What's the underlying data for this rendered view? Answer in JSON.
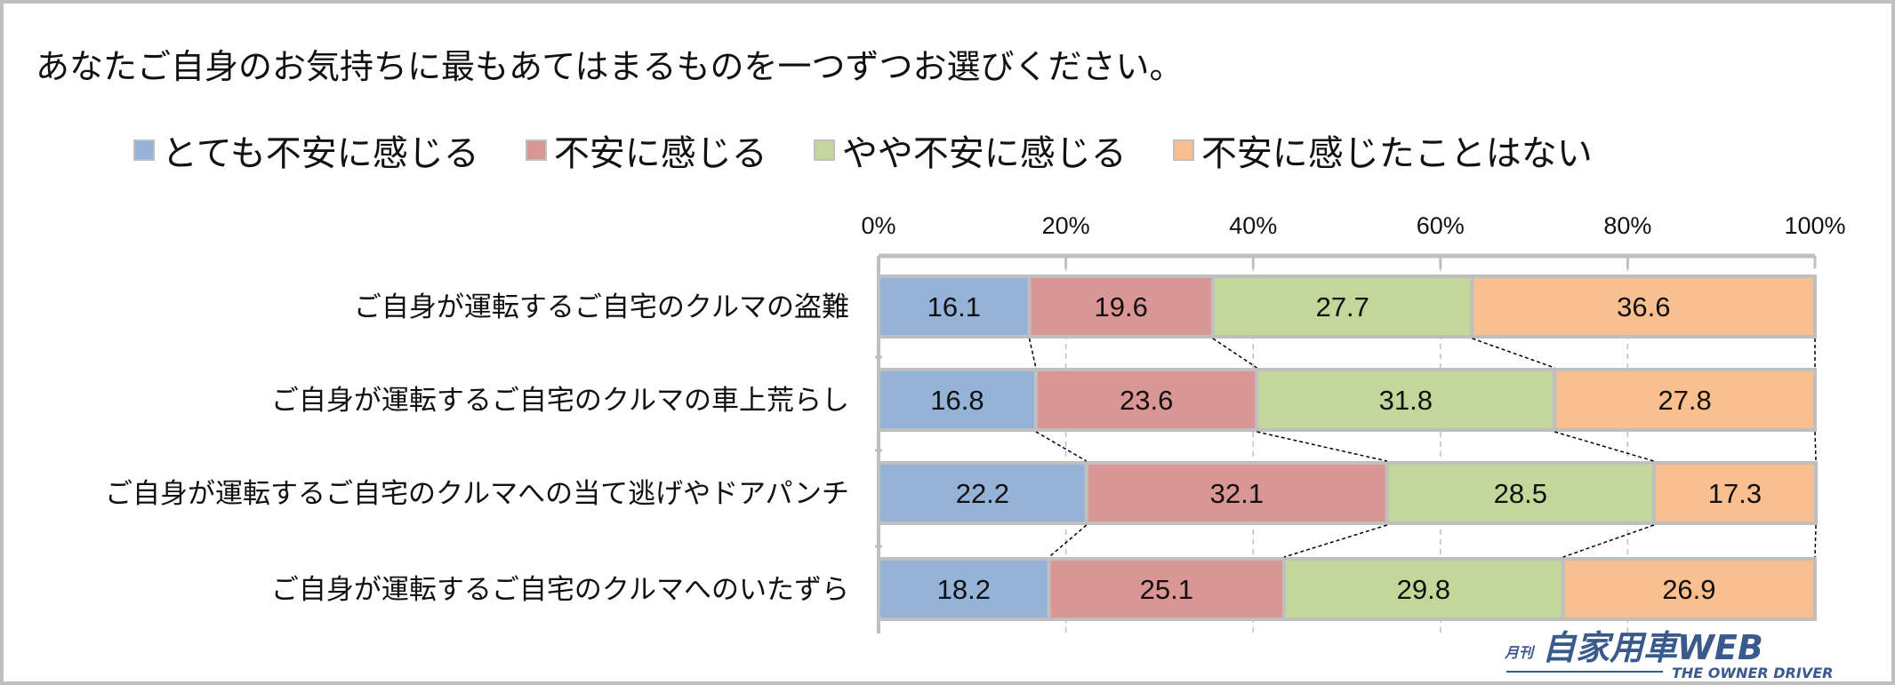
{
  "chart_data": {
    "type": "bar",
    "orientation": "horizontal-stacked-100",
    "title": "あなたご自身のお気持ちに最もあてはまるものを一つずつお選びください。",
    "categories": [
      "ご自身が運転するご自宅のクルマの盗難",
      "ご自身が運転するご自宅のクルマの車上荒らし",
      "ご自身が運転するご自宅のクルマへの当て逃げやドアパンチ",
      "ご自身が運転するご自宅のクルマへのいたずら"
    ],
    "series": [
      {
        "name": "とても不安に感じる",
        "color": "#95b3d7",
        "values": [
          16.1,
          16.8,
          22.2,
          18.2
        ]
      },
      {
        "name": "不安に感じる",
        "color": "#da9694",
        "values": [
          19.6,
          23.6,
          32.1,
          25.1
        ]
      },
      {
        "name": "やや不安に感じる",
        "color": "#c4d79b",
        "values": [
          27.7,
          31.8,
          28.5,
          29.8
        ]
      },
      {
        "name": "不安に感じたことはない",
        "color": "#fabf8f",
        "values": [
          36.6,
          27.8,
          17.3,
          26.9
        ]
      }
    ],
    "value_labels": [
      [
        "16.1",
        "19.6",
        "27.7",
        "36.6"
      ],
      [
        "16.8",
        "23.6",
        "31.8",
        "27.8"
      ],
      [
        "22.2",
        "32.1",
        "28.5",
        "17.3"
      ],
      [
        "18.2",
        "25.1",
        "29.8",
        "26.9"
      ]
    ],
    "xlim": [
      0,
      100
    ],
    "xticks": [
      "0%",
      "20%",
      "40%",
      "60%",
      "80%",
      "100%"
    ],
    "grid": true,
    "legend_position": "top",
    "series_lines": true
  },
  "watermark": {
    "text": "月刊 自家用車WEB",
    "subtext": "THE OWNER DRIVER",
    "color": "#3a5a8c"
  }
}
